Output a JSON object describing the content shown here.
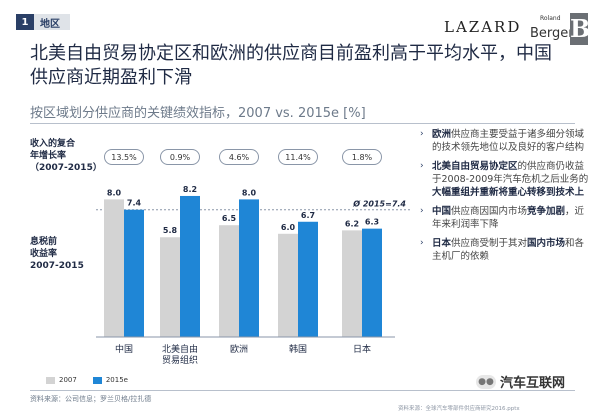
{
  "header": {
    "section_number": "1",
    "section_label": "地区",
    "logo_lazard": "LAZARD",
    "logo_roland": "Roland",
    "logo_berger": "Berger",
    "logo_mark": "B"
  },
  "headline_line1": "北美自由贸易协定区和欧洲的供应商目前盈利高于平均水平，中国",
  "headline_line2": "供应商近期盈利下滑",
  "subtitle": "按区域划分供应商的关键绩效指标，2007 vs. 2015e [%]",
  "labels": {
    "growth_line1": "收入的复合",
    "growth_line2": "年增长率",
    "growth_line3": "（2007-2015）",
    "ebit_line1": "息税前",
    "ebit_line2": "收益率",
    "ebit_line3": "2007-2015"
  },
  "growth_rates": [
    "13.5%",
    "0.9%",
    "4.6%",
    "11.4%",
    "1.8%"
  ],
  "avg_label": "Ø 2015=7.4",
  "chart_data": {
    "type": "bar",
    "categories": [
      "中国",
      "北美自由贸易组织",
      "欧洲",
      "韩国",
      "日本"
    ],
    "category_lines": [
      [
        "中国"
      ],
      [
        "北美自由",
        "贸易组织"
      ],
      [
        "欧洲"
      ],
      [
        "韩国"
      ],
      [
        "日本"
      ]
    ],
    "series": [
      {
        "name": "2007",
        "values": [
          8.0,
          5.8,
          6.5,
          6.0,
          6.2
        ],
        "labels": [
          "8.0",
          "5.8",
          "6.5",
          "6.0",
          "6.2"
        ]
      },
      {
        "name": "2015e",
        "values": [
          7.4,
          8.2,
          8.0,
          6.7,
          6.3
        ],
        "labels": [
          "7.4",
          "8.2",
          "8.0",
          "6.7",
          "6.3"
        ]
      }
    ],
    "average_2015": 7.4,
    "ylim": [
      0,
      10
    ],
    "colors": {
      "2007": "#d3d3d3",
      "2015e": "#1f86d6"
    },
    "legend_position": "bottom-left"
  },
  "bullets": [
    [
      {
        "t": "欧洲",
        "b": true
      },
      {
        "t": "供应商主要受益于诸多细分领域的技术领先地位以及良好的客户结构",
        "b": false
      }
    ],
    [
      {
        "t": "北美自由贸易协定区",
        "b": true
      },
      {
        "t": "的供应商仍收益于2008-2009年汽车危机之后业务的",
        "b": false
      },
      {
        "t": "大幅重组并重新将重心转移到技术上",
        "b": true
      }
    ],
    [
      {
        "t": "中国",
        "b": true
      },
      {
        "t": "供应商因国内市场",
        "b": false
      },
      {
        "t": "竞争加剧",
        "b": true
      },
      {
        "t": "，近年来利润率下降",
        "b": false
      }
    ],
    [
      {
        "t": "日本",
        "b": true
      },
      {
        "t": "供应商受制于其对",
        "b": false
      },
      {
        "t": "国内市场",
        "b": true
      },
      {
        "t": "和各主机厂的依赖",
        "b": false
      }
    ]
  ],
  "footnote": "资料来源：公司信息；罗兰贝格/拉扎德",
  "watermark": "汽车互联网",
  "page_footer": "资料来源：全球汽车零部件供应商研究2016.pptx"
}
